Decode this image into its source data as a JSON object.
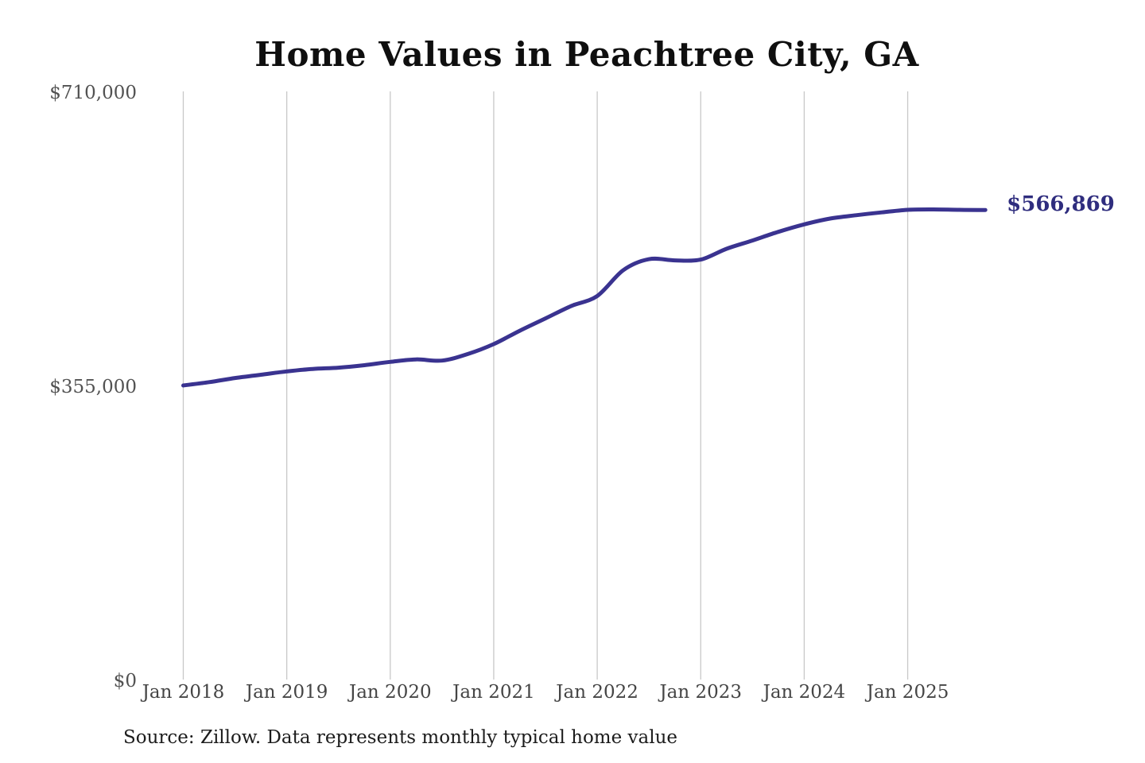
{
  "chart_data": {
    "type": "line",
    "title": "Home Values in Peachtree City, GA",
    "source": "Source: Zillow. Data represents monthly typical home value",
    "series_name": "Typical home value",
    "x": [
      "2018-01",
      "2018-04",
      "2018-07",
      "2018-10",
      "2019-01",
      "2019-04",
      "2019-07",
      "2019-10",
      "2020-01",
      "2020-04",
      "2020-07",
      "2020-10",
      "2021-01",
      "2021-04",
      "2021-07",
      "2021-10",
      "2022-01",
      "2022-04",
      "2022-07",
      "2022-10",
      "2023-01",
      "2023-04",
      "2023-07",
      "2023-10",
      "2024-01",
      "2024-04",
      "2024-07",
      "2024-10",
      "2025-01",
      "2025-04",
      "2025-07",
      "2025-10"
    ],
    "values": [
      355000,
      359000,
      364000,
      368000,
      372000,
      375000,
      376500,
      379500,
      383500,
      386500,
      385000,
      393000,
      405000,
      421000,
      436000,
      451000,
      463000,
      494000,
      507500,
      506000,
      507000,
      520000,
      530000,
      540500,
      549500,
      556500,
      560500,
      564000,
      567000,
      567500,
      567000,
      566869
    ],
    "x_tick_labels": [
      "Jan 2018",
      "Jan 2019",
      "Jan 2020",
      "Jan 2021",
      "Jan 2022",
      "Jan 2023",
      "Jan 2024",
      "Jan 2025"
    ],
    "y_ticks": [
      {
        "label": "$710,000",
        "value": 710000
      },
      {
        "label": "$355,000",
        "value": 355000
      },
      {
        "label": "$0",
        "value": 0
      }
    ],
    "ylim": [
      0,
      710000
    ],
    "end_label": "$566,869",
    "line_color": "#3a3390",
    "end_label_color": "#2f2d7e",
    "grid_color": "#c8c8c8",
    "y_tick_color": "#525252",
    "x_tick_color": "#454545",
    "grid": "vertical-only",
    "legend": "none"
  }
}
